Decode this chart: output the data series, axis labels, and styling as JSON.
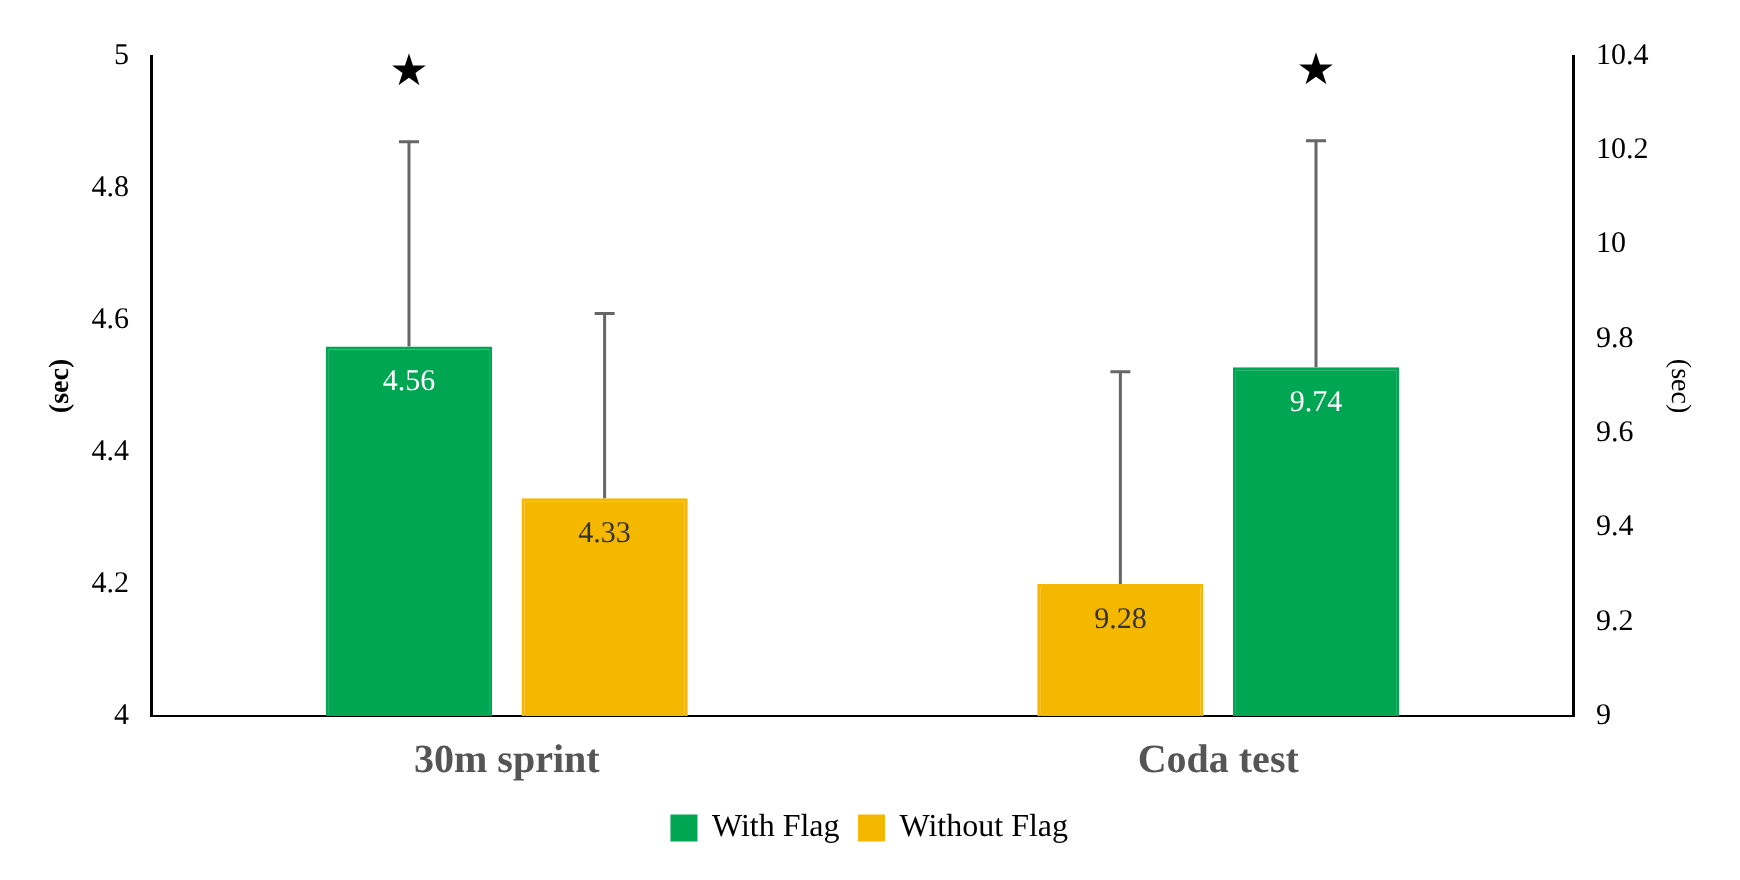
{
  "chart_data": {
    "type": "bar",
    "categories": [
      "30m sprint",
      "Coda test"
    ],
    "ylabel": "(sec)",
    "y2label": "(sec)",
    "ylim": [
      4,
      5
    ],
    "yticks": [
      4,
      4.2,
      4.4,
      4.6,
      4.8,
      5
    ],
    "y2lim": [
      9,
      10.4
    ],
    "y2ticks": [
      9,
      9.2,
      9.4,
      9.6,
      9.8,
      10,
      10.2,
      10.4
    ],
    "series": [
      {
        "name": "With Flag",
        "color": "#00a651",
        "values": [
          4.56,
          null
        ],
        "errors": [
          [
            4.56,
            4.87
          ],
          null
        ]
      },
      {
        "name": "Without Flag",
        "color": "#f5b800",
        "values": [
          4.33,
          null
        ],
        "errors": [
          [
            4.33,
            4.61
          ],
          null
        ]
      },
      {
        "color": "#f5b800",
        "axis": "y2",
        "values": [
          null,
          9.28
        ],
        "errors": [
          null,
          [
            9.28,
            9.73
          ]
        ]
      },
      {
        "color": "#00a651",
        "axis": "y2",
        "values": [
          null,
          9.74
        ],
        "errors": [
          null,
          [
            9.74,
            10.22
          ]
        ]
      }
    ],
    "annotations": [
      "★",
      "★"
    ],
    "data_labels": true,
    "grid": false,
    "legend": "bottom"
  }
}
